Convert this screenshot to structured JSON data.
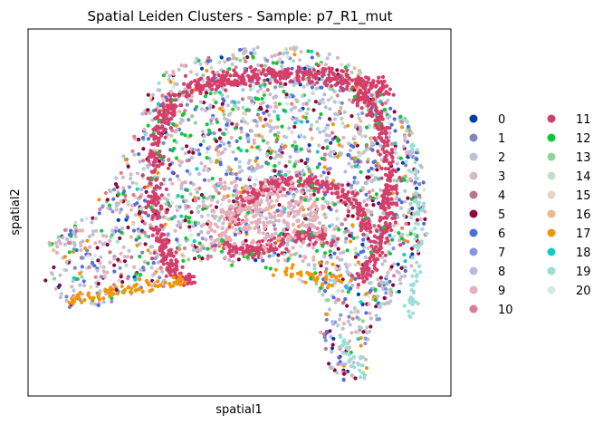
{
  "chart_data": {
    "type": "scatter",
    "title": "Spatial Leiden Clusters - Sample: p7_R1_mut",
    "xlabel": "spatial1",
    "ylabel": "spatial2",
    "grid": false,
    "ticks": false,
    "legend_placement": "right",
    "legend_columns": 2,
    "categories": [
      "0",
      "1",
      "2",
      "3",
      "4",
      "5",
      "6",
      "7",
      "8",
      "9",
      "10",
      "11",
      "12",
      "13",
      "14",
      "15",
      "16",
      "17",
      "18",
      "19",
      "20"
    ],
    "colors": [
      "#023fa5",
      "#7d87b9",
      "#bec1d4",
      "#d6bcc0",
      "#bb7784",
      "#8e063b",
      "#4a6fe3",
      "#8595e1",
      "#b5bbe3",
      "#e6afb9",
      "#e07b91",
      "#d33f6a",
      "#11c638",
      "#8dd593",
      "#c6dec7",
      "#ead3c6",
      "#f0b98d",
      "#ef9708",
      "#0fcfc0",
      "#9cded6",
      "#d5eae7"
    ]
  }
}
